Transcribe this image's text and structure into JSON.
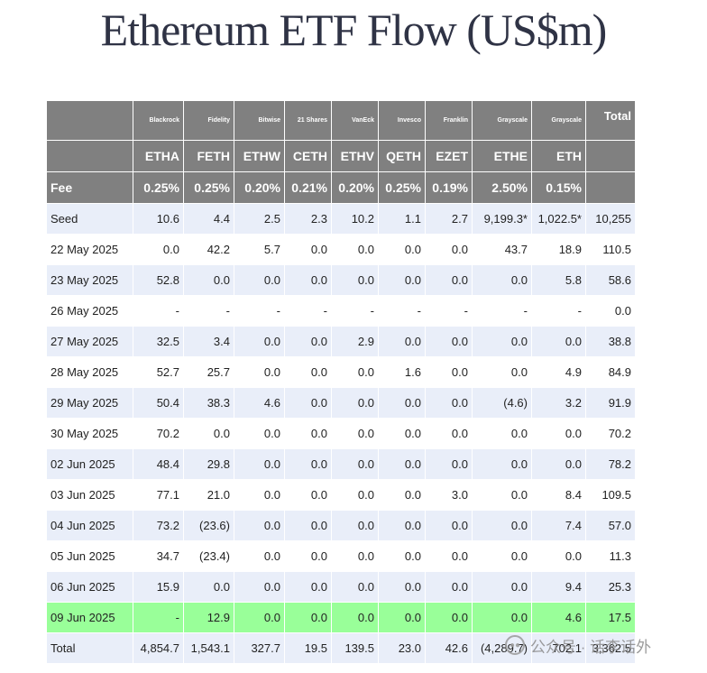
{
  "title": "Ethereum ETF Flow (US$m)",
  "header": {
    "issuers": [
      "",
      "Blackrock",
      "Fidelity",
      "Bitwise",
      "21 Shares",
      "VanEck",
      "Invesco",
      "Franklin",
      "Grayscale",
      "Grayscale",
      "Total"
    ],
    "tickers": [
      "",
      "ETHA",
      "FETH",
      "ETHW",
      "CETH",
      "ETHV",
      "QETH",
      "EZET",
      "ETHE",
      "ETH",
      ""
    ],
    "fees": [
      "Fee",
      "0.25%",
      "0.25%",
      "0.20%",
      "0.21%",
      "0.20%",
      "0.25%",
      "0.19%",
      "2.50%",
      "0.15%",
      ""
    ]
  },
  "rows": [
    [
      "Seed",
      "10.6",
      "4.4",
      "2.5",
      "2.3",
      "10.2",
      "1.1",
      "2.7",
      "9,199.3*",
      "1,022.5*",
      "10,255"
    ],
    [
      "22 May 2025",
      "0.0",
      "42.2",
      "5.7",
      "0.0",
      "0.0",
      "0.0",
      "0.0",
      "43.7",
      "18.9",
      "110.5"
    ],
    [
      "23 May 2025",
      "52.8",
      "0.0",
      "0.0",
      "0.0",
      "0.0",
      "0.0",
      "0.0",
      "0.0",
      "5.8",
      "58.6"
    ],
    [
      "26 May 2025",
      "-",
      "-",
      "-",
      "-",
      "-",
      "-",
      "-",
      "-",
      "-",
      "0.0"
    ],
    [
      "27 May 2025",
      "32.5",
      "3.4",
      "0.0",
      "0.0",
      "2.9",
      "0.0",
      "0.0",
      "0.0",
      "0.0",
      "38.8"
    ],
    [
      "28 May 2025",
      "52.7",
      "25.7",
      "0.0",
      "0.0",
      "0.0",
      "1.6",
      "0.0",
      "0.0",
      "4.9",
      "84.9"
    ],
    [
      "29 May 2025",
      "50.4",
      "38.3",
      "4.6",
      "0.0",
      "0.0",
      "0.0",
      "0.0",
      "(4.6)",
      "3.2",
      "91.9"
    ],
    [
      "30 May 2025",
      "70.2",
      "0.0",
      "0.0",
      "0.0",
      "0.0",
      "0.0",
      "0.0",
      "0.0",
      "0.0",
      "70.2"
    ],
    [
      "02 Jun 2025",
      "48.4",
      "29.8",
      "0.0",
      "0.0",
      "0.0",
      "0.0",
      "0.0",
      "0.0",
      "0.0",
      "78.2"
    ],
    [
      "03 Jun 2025",
      "77.1",
      "21.0",
      "0.0",
      "0.0",
      "0.0",
      "0.0",
      "3.0",
      "0.0",
      "8.4",
      "109.5"
    ],
    [
      "04 Jun 2025",
      "73.2",
      "(23.6)",
      "0.0",
      "0.0",
      "0.0",
      "0.0",
      "0.0",
      "0.0",
      "7.4",
      "57.0"
    ],
    [
      "05 Jun 2025",
      "34.7",
      "(23.4)",
      "0.0",
      "0.0",
      "0.0",
      "0.0",
      "0.0",
      "0.0",
      "0.0",
      "11.3"
    ],
    [
      "06 Jun 2025",
      "15.9",
      "0.0",
      "0.0",
      "0.0",
      "0.0",
      "0.0",
      "0.0",
      "0.0",
      "9.4",
      "25.3"
    ],
    [
      "09 Jun 2025",
      "-",
      "12.9",
      "0.0",
      "0.0",
      "0.0",
      "0.0",
      "0.0",
      "0.0",
      "4.6",
      "17.5"
    ],
    [
      "Total",
      "4,854.7",
      "1,543.1",
      "327.7",
      "19.5",
      "139.5",
      "23.0",
      "42.6",
      "(4,289.7)",
      "702.1",
      "3,362.5"
    ]
  ],
  "highlight_row": 13,
  "colors": {
    "header_bg": "#808080",
    "row_alt_bg": "#e9eef9",
    "highlight_bg": "#99ff99",
    "negative_text": "#c0392b",
    "title_text": "#2f3345"
  },
  "watermark": {
    "text": "公众号 · 话李话外",
    "icon": "wechat-logo-icon"
  }
}
